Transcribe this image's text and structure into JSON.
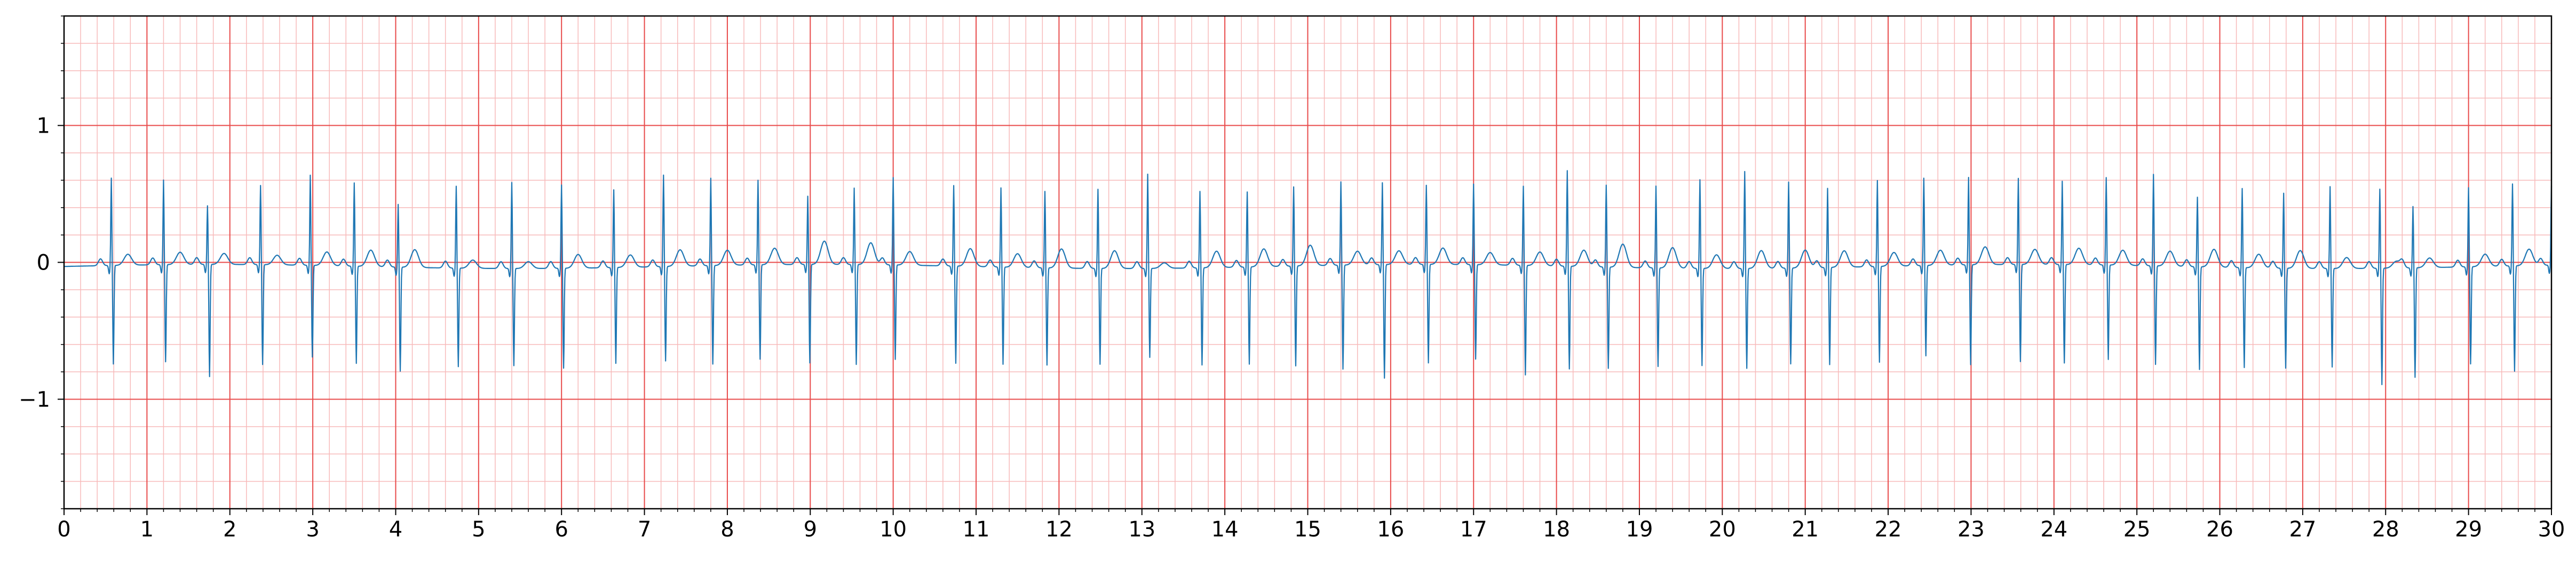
{
  "chart_data": {
    "type": "line",
    "title": "",
    "xlabel": "",
    "ylabel": "",
    "xlim": [
      0,
      30
    ],
    "ylim": [
      -1.8,
      1.8
    ],
    "x_ticks": [
      "0",
      "1",
      "2",
      "3",
      "4",
      "5",
      "6",
      "7",
      "8",
      "9",
      "10",
      "11",
      "12",
      "13",
      "14",
      "15",
      "16",
      "17",
      "18",
      "19",
      "20",
      "21",
      "22",
      "23",
      "24",
      "25",
      "26",
      "27",
      "28",
      "29",
      "30"
    ],
    "y_ticks": [
      {
        "value": 1,
        "label": "1"
      },
      {
        "value": 0,
        "label": "0"
      },
      {
        "value": -1,
        "label": "−1"
      }
    ],
    "grid": {
      "major_x": 1,
      "minor_x": 0.2,
      "major_y": 1,
      "minor_y": 0.2,
      "major_color": "#e84a4a",
      "minor_color": "#f7baba"
    },
    "line_color": "#1f77b4",
    "series": [
      {
        "name": "",
        "sampling_rate_hz": 50,
        "beat_times": [
          0.57,
          1.2,
          1.73,
          2.37,
          2.97,
          3.5,
          4.03,
          4.73,
          5.4,
          6.0,
          6.63,
          7.23,
          7.8,
          8.37,
          8.97,
          9.53,
          10.0,
          10.73,
          11.3,
          11.83,
          12.47,
          13.07,
          13.7,
          14.27,
          14.83,
          15.4,
          15.9,
          16.43,
          17.0,
          17.6,
          18.13,
          18.6,
          19.2,
          19.73,
          20.27,
          20.8,
          21.27,
          21.87,
          22.43,
          22.97,
          23.57,
          24.1,
          24.63,
          25.2,
          25.73,
          26.27,
          26.77,
          27.33,
          27.93,
          28.33,
          29.0,
          29.53,
          30.0
        ],
        "r_amplitudes": [
          0.64,
          0.62,
          0.43,
          0.58,
          0.66,
          0.61,
          0.46,
          0.6,
          0.63,
          0.61,
          0.57,
          0.67,
          0.64,
          0.62,
          0.5,
          0.56,
          0.64,
          0.59,
          0.58,
          0.56,
          0.58,
          0.69,
          0.56,
          0.55,
          0.58,
          0.61,
          0.6,
          0.58,
          0.59,
          0.58,
          0.7,
          0.6,
          0.6,
          0.65,
          0.71,
          0.63,
          0.58,
          0.63,
          0.64,
          0.64,
          0.63,
          0.61,
          0.64,
          0.67,
          0.51,
          0.58,
          0.55,
          0.6,
          0.58,
          0.45,
          0.58,
          0.6,
          0.58
        ],
        "s_amplitudes": [
          -0.72,
          -0.71,
          -0.82,
          -0.73,
          -0.67,
          -0.71,
          -0.76,
          -0.72,
          -0.71,
          -0.73,
          -0.7,
          -0.69,
          -0.72,
          -0.69,
          -0.72,
          -0.73,
          -0.69,
          -0.71,
          -0.71,
          -0.71,
          -0.7,
          -0.65,
          -0.71,
          -0.71,
          -0.73,
          -0.76,
          -0.83,
          -0.72,
          -0.69,
          -0.8,
          -0.75,
          -0.74,
          -0.72,
          -0.71,
          -0.73,
          -0.7,
          -0.71,
          -0.7,
          -0.66,
          -0.73,
          -0.71,
          -0.72,
          -0.69,
          -0.72,
          -0.75,
          -0.73,
          -0.73,
          -0.72,
          -0.85,
          -0.8,
          -0.71,
          -0.77,
          -0.59
        ],
        "t_amplitudes": [
          0.08,
          0.09,
          0.08,
          0.07,
          0.1,
          0.12,
          0.13,
          0.06,
          0.05,
          0.1,
          0.09,
          0.12,
          0.11,
          0.12,
          0.17,
          0.16,
          0.1,
          0.13,
          0.1,
          0.14,
          0.13,
          0.04,
          0.12,
          0.13,
          0.15,
          0.1,
          0.1,
          0.12,
          0.09,
          0.1,
          0.12,
          0.17,
          0.15,
          0.1,
          0.13,
          0.13,
          0.12,
          0.1,
          0.11,
          0.13,
          0.11,
          0.12,
          0.11,
          0.11,
          0.13,
          0.1,
          0.13,
          0.08,
          0.05,
          0.07,
          0.09,
          0.12,
          0.0
        ]
      }
    ]
  }
}
